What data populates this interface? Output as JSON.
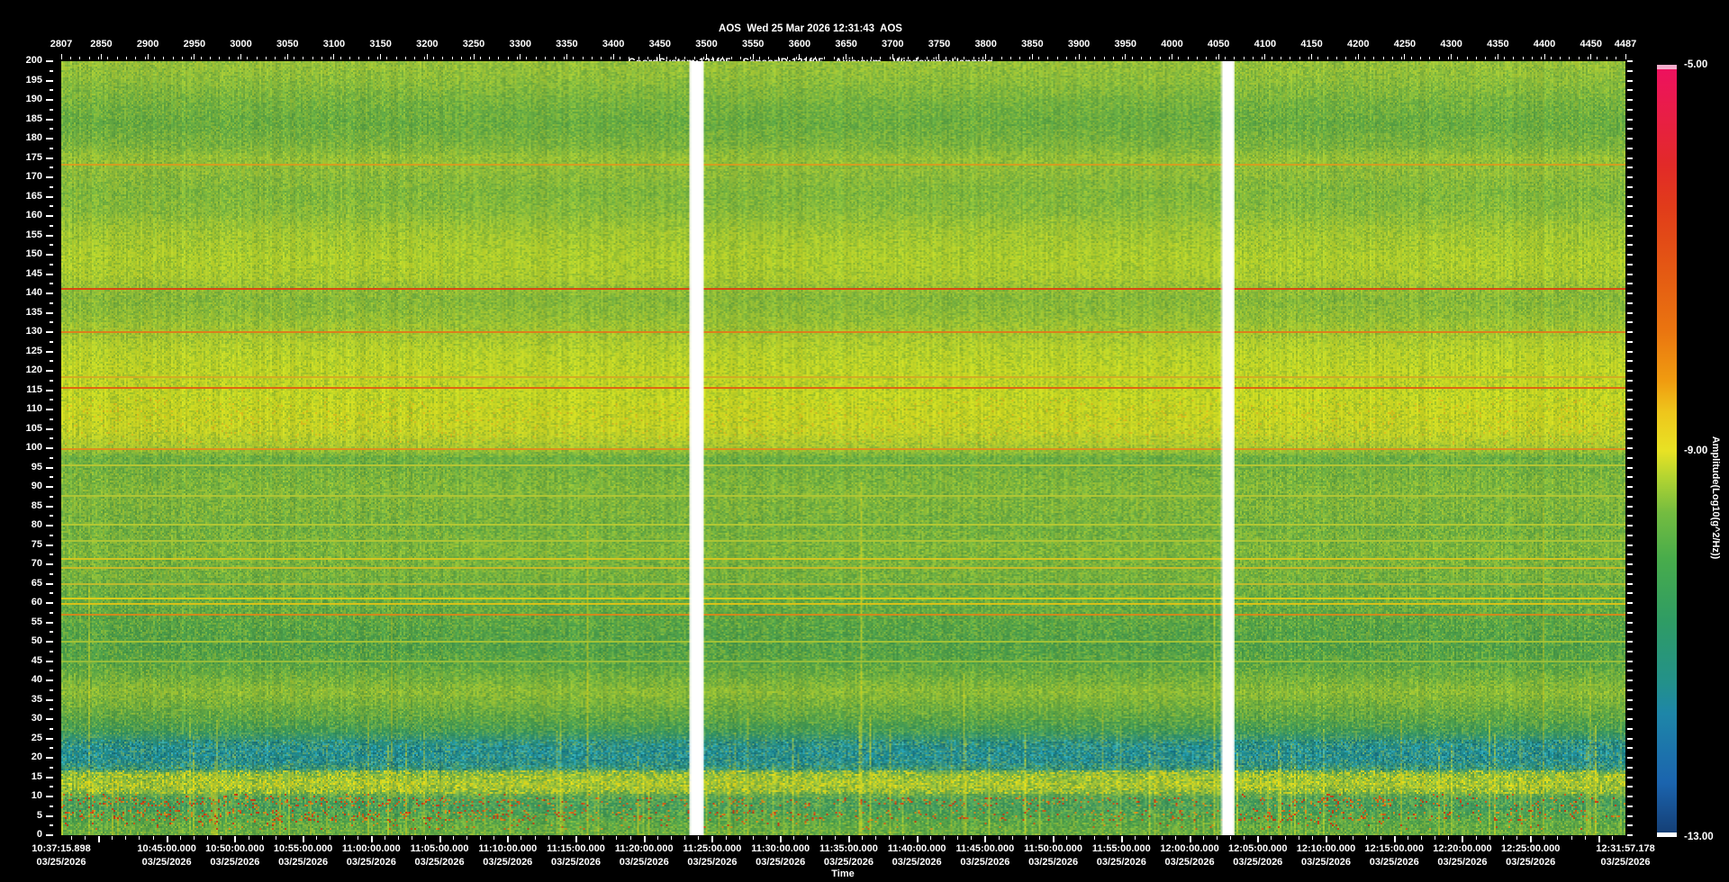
{
  "window": {
    "background": "#000000",
    "text_color": "#ffffff"
  },
  "header": {
    "line1": "AOS  Wed 25 Mar 2026 12:31:43  AOS",
    "line2": "CoordSystem:121f05    SensorID:121f05    Axis:sum    Windowing:Hanning",
    "line3": "Cuttoff(Hz):200     df(Hz):0.2441     Sample/Sec:500     PSD size:2048     Overlap(%):0     TimeRes.(sec):4.096"
  },
  "chart_data": {
    "type": "heatmap",
    "title": "AOS  Wed 25 Mar 2026 12:31:43  AOS",
    "description": "Acoustic PSD spectrogram: frequency 0-200 Hz vs time, amplitude colormap, two white data gaps",
    "top_axis": {
      "min": 2807,
      "max": 4487,
      "minor_step": 10,
      "labels": [
        2807,
        2850,
        2900,
        2950,
        3000,
        3050,
        3100,
        3150,
        3200,
        3250,
        3300,
        3350,
        3400,
        3450,
        3500,
        3550,
        3600,
        3650,
        3700,
        3750,
        3800,
        3850,
        3900,
        3950,
        4000,
        4050,
        4100,
        4150,
        4200,
        4250,
        4300,
        4350,
        4400,
        4450,
        4487
      ]
    },
    "y_axis": {
      "min": 0,
      "max": 200,
      "major_step": 5,
      "minor_step": 2.5,
      "labels": [
        200,
        195,
        190,
        185,
        180,
        175,
        170,
        165,
        160,
        155,
        150,
        145,
        140,
        135,
        130,
        125,
        120,
        115,
        110,
        105,
        100,
        95,
        90,
        85,
        80,
        75,
        70,
        65,
        60,
        55,
        50,
        45,
        40,
        35,
        30,
        25,
        20,
        15,
        10,
        5,
        0
      ]
    },
    "x_axis": {
      "label": "Time",
      "labels": [
        {
          "time": "10:37:15.898",
          "date": "03/25/2026"
        },
        {
          "time": "10:45:00.000",
          "date": "03/25/2026"
        },
        {
          "time": "10:50:00.000",
          "date": "03/25/2026"
        },
        {
          "time": "10:55:00.000",
          "date": "03/25/2026"
        },
        {
          "time": "11:00:00.000",
          "date": "03/25/2026"
        },
        {
          "time": "11:05:00.000",
          "date": "03/25/2026"
        },
        {
          "time": "11:10:00.000",
          "date": "03/25/2026"
        },
        {
          "time": "11:15:00.000",
          "date": "03/25/2026"
        },
        {
          "time": "11:20:00.000",
          "date": "03/25/2026"
        },
        {
          "time": "11:25:00.000",
          "date": "03/25/2026"
        },
        {
          "time": "11:30:00.000",
          "date": "03/25/2026"
        },
        {
          "time": "11:35:00.000",
          "date": "03/25/2026"
        },
        {
          "time": "11:40:00.000",
          "date": "03/25/2026"
        },
        {
          "time": "11:45:00.000",
          "date": "03/25/2026"
        },
        {
          "time": "11:50:00.000",
          "date": "03/25/2026"
        },
        {
          "time": "11:55:00.000",
          "date": "03/25/2026"
        },
        {
          "time": "12:00:00.000",
          "date": "03/25/2026"
        },
        {
          "time": "12:05:00.000",
          "date": "03/25/2026"
        },
        {
          "time": "12:10:00.000",
          "date": "03/25/2026"
        },
        {
          "time": "12:15:00.000",
          "date": "03/25/2026"
        },
        {
          "time": "12:20:00.000",
          "date": "03/25/2026"
        },
        {
          "time": "12:25:00.000",
          "date": "03/25/2026"
        },
        {
          "time": "12:31:57.178",
          "date": "03/25/2026"
        }
      ]
    },
    "colorbar": {
      "label": "Amplitude(Log10(g^2/Hz))",
      "min": -13,
      "max": -5,
      "tick_values": [
        -5,
        -9,
        -13
      ],
      "tick_labels": [
        "-5.00",
        "-9.00",
        "-13.00"
      ],
      "top_tick_color": "#f5accb",
      "bottom_tick_color": "#ffffff",
      "stops": [
        [
          0.0,
          "#ee1060"
        ],
        [
          0.07,
          "#e81f44"
        ],
        [
          0.13,
          "#e22a28"
        ],
        [
          0.185,
          "#e13c1a"
        ],
        [
          0.27,
          "#e45a13"
        ],
        [
          0.345,
          "#ea7510"
        ],
        [
          0.41,
          "#f09c10"
        ],
        [
          0.45,
          "#eec61c"
        ],
        [
          0.5,
          "#e8e224"
        ],
        [
          0.535,
          "#b2d431"
        ],
        [
          0.58,
          "#74bc40"
        ],
        [
          0.64,
          "#48ac4b"
        ],
        [
          0.72,
          "#2f9c64"
        ],
        [
          0.8,
          "#23918a"
        ],
        [
          0.84,
          "#1e86a8"
        ],
        [
          0.93,
          "#1b64ae"
        ],
        [
          1.0,
          "#143c72"
        ]
      ]
    },
    "gaps_records": [
      [
        3482,
        3497
      ],
      [
        4053,
        4067
      ]
    ],
    "bands": [
      [
        200,
        "#98c23a"
      ],
      [
        195,
        "#8cbe3c"
      ],
      [
        189,
        "#72b241"
      ],
      [
        184,
        "#66ac43"
      ],
      [
        178,
        "#7ab43f"
      ],
      [
        175,
        "#96c238"
      ],
      [
        171,
        "#8cbc3b"
      ],
      [
        166,
        "#7eb83e"
      ],
      [
        161,
        "#88bc3c"
      ],
      [
        156,
        "#a2c833"
      ],
      [
        149,
        "#b0d02d"
      ],
      [
        144,
        "#accc2f"
      ],
      [
        139,
        "#84b83b"
      ],
      [
        134,
        "#90be37"
      ],
      [
        129,
        "#aaca30"
      ],
      [
        125,
        "#bad42a"
      ],
      [
        120,
        "#c2d626"
      ],
      [
        114,
        "#c6d824"
      ],
      [
        109,
        "#cad622"
      ],
      [
        104,
        "#c6d426"
      ],
      [
        100,
        "#a8c832"
      ],
      [
        97.5,
        "#68ae44"
      ],
      [
        93,
        "#78b43f"
      ],
      [
        89,
        "#80b83d"
      ],
      [
        84,
        "#7ab43f"
      ],
      [
        79,
        "#72b241"
      ],
      [
        74,
        "#7cb63e"
      ],
      [
        67,
        "#74b240"
      ],
      [
        63,
        "#6aae43"
      ],
      [
        58,
        "#60aa45"
      ],
      [
        54,
        "#55a449"
      ],
      [
        49,
        "#4ea04b"
      ],
      [
        44,
        "#58a647"
      ],
      [
        40,
        "#74b23f"
      ],
      [
        37,
        "#8cbc38"
      ],
      [
        34,
        "#76b23e"
      ],
      [
        30,
        "#57a44a"
      ],
      [
        27,
        "#3e9a5c"
      ],
      [
        24.5,
        "#2b9180"
      ],
      [
        22,
        "#1f8e9c"
      ],
      [
        19,
        "#208c96"
      ],
      [
        17,
        "#3a9876"
      ],
      [
        15.5,
        "#84ba44"
      ],
      [
        13,
        "#9cc23a"
      ],
      [
        11,
        "#74b04a"
      ],
      [
        9.5,
        "#4aa05e"
      ],
      [
        7,
        "#429c62"
      ],
      [
        5,
        "#4ca254"
      ],
      [
        3,
        "#5aa84a"
      ],
      [
        0,
        "#68ae44"
      ]
    ],
    "lines": [
      [
        173.4,
        "#dc9a1e",
        2
      ],
      [
        141.2,
        "#e03c0e",
        2
      ],
      [
        130.1,
        "#e2781a",
        2
      ],
      [
        118.6,
        "#d4a824",
        1
      ],
      [
        115.9,
        "#e25c10",
        2
      ],
      [
        100.2,
        "#e08c1c",
        2
      ],
      [
        95.8,
        "#bcc832",
        1
      ],
      [
        87.9,
        "#b4c834",
        1
      ],
      [
        80.3,
        "#b8ca32",
        1
      ],
      [
        76.1,
        "#b0c634",
        1
      ],
      [
        71.6,
        "#dcc61e",
        2
      ],
      [
        69.4,
        "#d0bc26",
        1
      ],
      [
        65.2,
        "#c4bc2c",
        1
      ],
      [
        61.6,
        "#e6ce16",
        2
      ],
      [
        60.2,
        "#e4c414",
        2
      ],
      [
        57.1,
        "#de8418",
        2
      ],
      [
        50.3,
        "#a8c434",
        1
      ],
      [
        44.9,
        "#9cc03a",
        1
      ]
    ]
  }
}
